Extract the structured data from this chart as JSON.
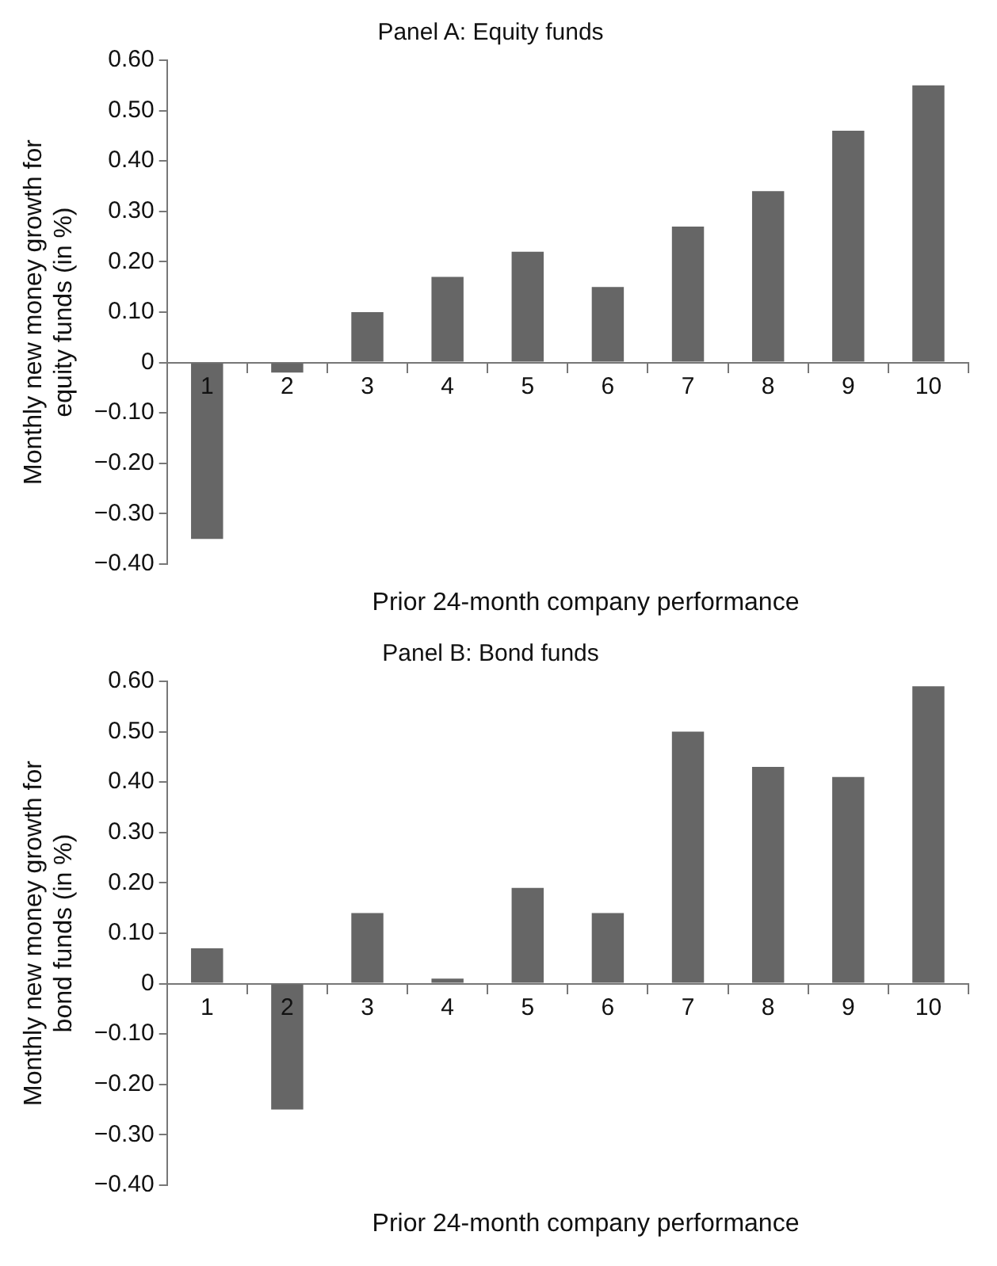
{
  "chart_data": [
    {
      "type": "bar",
      "title": "Panel A: Equity funds",
      "xlabel": "Prior 24-month company performance",
      "ylabel": "Monthly new money growth for equity funds (in %)",
      "categories": [
        "1",
        "2",
        "3",
        "4",
        "5",
        "6",
        "7",
        "8",
        "9",
        "10"
      ],
      "values": [
        -0.35,
        -0.02,
        0.1,
        0.17,
        0.22,
        0.15,
        0.27,
        0.34,
        0.46,
        0.55
      ],
      "color": "#666666",
      "ylim": [
        -0.4,
        0.6
      ],
      "yticks": [
        {
          "value": -0.4,
          "label": "−0.40"
        },
        {
          "value": -0.3,
          "label": "−0.30"
        },
        {
          "value": -0.2,
          "label": "−0.20"
        },
        {
          "value": -0.1,
          "label": "−0.10"
        },
        0,
        {
          "value": 0.1,
          "label": "0.10"
        },
        {
          "value": 0.2,
          "label": "0.20"
        },
        {
          "value": 0.3,
          "label": "0.30"
        },
        {
          "value": 0.4,
          "label": "0.40"
        },
        {
          "value": 0.5,
          "label": "0.50"
        },
        {
          "value": 0.6,
          "label": "0.60"
        }
      ]
    },
    {
      "type": "bar",
      "title": "Panel B: Bond funds",
      "xlabel": "Prior 24-month company performance",
      "ylabel": "Monthly new money growth for bond funds (in %)",
      "categories": [
        "1",
        "2",
        "3",
        "4",
        "5",
        "6",
        "7",
        "8",
        "9",
        "10"
      ],
      "values": [
        0.07,
        -0.25,
        0.14,
        0.01,
        0.19,
        0.14,
        0.5,
        0.43,
        0.41,
        0.59
      ],
      "color": "#666666",
      "ylim": [
        -0.4,
        0.6
      ],
      "yticks": [
        {
          "value": -0.4,
          "label": "−0.40"
        },
        {
          "value": -0.3,
          "label": "−0.30"
        },
        {
          "value": -0.2,
          "label": "−0.20"
        },
        {
          "value": -0.1,
          "label": "−0.10"
        },
        0,
        {
          "value": 0.1,
          "label": "0.10"
        },
        {
          "value": 0.2,
          "label": "0.20"
        },
        {
          "value": 0.3,
          "label": "0.30"
        },
        {
          "value": 0.4,
          "label": "0.40"
        },
        {
          "value": 0.5,
          "label": "0.50"
        },
        {
          "value": 0.6,
          "label": "0.60"
        }
      ]
    }
  ]
}
